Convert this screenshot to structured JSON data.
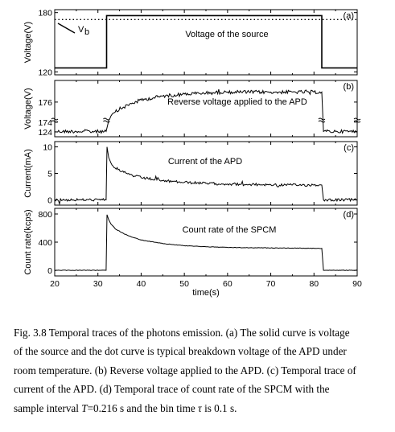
{
  "chart_data": [
    {
      "type": "line",
      "panel_label": "(a)",
      "annotation": "Voltage of the source",
      "ylabel": "Voltage(V)",
      "yticks": [
        120,
        180
      ],
      "ylim": [
        117,
        183
      ],
      "xlim": [
        20,
        90
      ],
      "series": [
        {
          "style": "solid",
          "x": [
            20,
            32,
            32,
            81.8,
            81.8,
            90
          ],
          "y": [
            124,
            124,
            177,
            177,
            124,
            124
          ]
        },
        {
          "name": "Vb",
          "style": "dotted",
          "x": [
            20,
            90
          ],
          "y": [
            173,
            173
          ]
        }
      ],
      "vb_label": "V",
      "vb_sub": "b"
    },
    {
      "type": "line",
      "panel_label": "(b)",
      "annotation": "Reverse voltage applied to the APD",
      "ylabel": "Voltage(V)",
      "yticks": [
        124,
        174,
        176
      ],
      "xlim": [
        20,
        90
      ],
      "axis_break": true,
      "series": [
        {
          "x": [
            20,
            25,
            31.9,
            32.3,
            33,
            34,
            36,
            38,
            40,
            45,
            50,
            55,
            60,
            65,
            70,
            75,
            80,
            81.8,
            82.2,
            85,
            90
          ],
          "y": [
            124.1,
            124.1,
            124.1,
            173.8,
            174.6,
            175.0,
            175.5,
            175.9,
            176.2,
            176.6,
            176.8,
            176.9,
            177.0,
            177.0,
            177.0,
            177.0,
            177.0,
            177.0,
            124.1,
            124.1,
            124.1
          ]
        }
      ]
    },
    {
      "type": "line",
      "panel_label": "(c)",
      "annotation": "Current of the APD",
      "ylabel": "Current(mA)",
      "yticks": [
        0,
        5,
        10
      ],
      "ylim": [
        -1,
        11
      ],
      "xlim": [
        20,
        90
      ],
      "series": [
        {
          "x": [
            20,
            31.9,
            32.1,
            32.5,
            33,
            34,
            36,
            38,
            40,
            45,
            50,
            55,
            60,
            65,
            70,
            75,
            80,
            81.8,
            82.2,
            90
          ],
          "y": [
            0,
            0,
            10.0,
            8.0,
            7.0,
            6.0,
            5.2,
            4.6,
            4.2,
            3.6,
            3.3,
            3.1,
            3.0,
            2.9,
            2.85,
            2.8,
            2.8,
            2.8,
            0,
            0
          ]
        }
      ]
    },
    {
      "type": "line",
      "panel_label": "(d)",
      "annotation": "Count rate of the SPCM",
      "ylabel": "Count rate(kcps)",
      "xlabel": "time(s)",
      "xticks": [
        20,
        30,
        40,
        50,
        60,
        70,
        80,
        90
      ],
      "yticks": [
        0,
        400,
        800
      ],
      "ylim": [
        -80,
        880
      ],
      "xlim": [
        20,
        90
      ],
      "series": [
        {
          "x": [
            20,
            31.9,
            32.1,
            32.5,
            33,
            34,
            36,
            38,
            40,
            45,
            50,
            55,
            60,
            65,
            70,
            75,
            80,
            81.8,
            82.2,
            90
          ],
          "y": [
            0,
            0,
            790,
            720,
            660,
            590,
            520,
            470,
            430,
            380,
            350,
            335,
            325,
            320,
            318,
            315,
            312,
            312,
            0,
            0
          ]
        }
      ]
    }
  ],
  "caption": {
    "line1": "Fig. 3.8 Temporal traces of the photons emission. (a) The solid curve is voltage",
    "line2": "of the source and the dot curve is typical breakdown voltage of the APD under",
    "line3": "room temperature. (b) Reverse voltage applied to the APD. (c) Temporal trace of",
    "line4": "current of the APD. (d) Temporal trace of count rate of the SPCM with the",
    "line5_pre": "sample interval ",
    "line5_T": "T",
    "line5_mid": "=0.216 s and the bin time ",
    "line5_tau": "τ",
    "line5_post": " is 0.1 s."
  }
}
